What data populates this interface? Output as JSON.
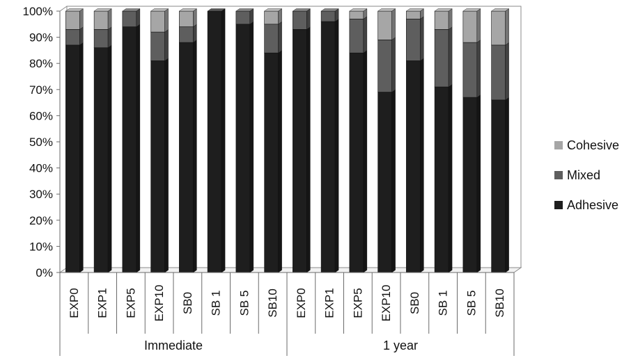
{
  "chart_data": {
    "type": "bar",
    "stacked": true,
    "percent_axis": true,
    "title": "",
    "xlabel": "",
    "ylabel": "",
    "ylim": [
      0,
      100
    ],
    "yticks": [
      "0%",
      "10%",
      "20%",
      "30%",
      "40%",
      "50%",
      "60%",
      "70%",
      "80%",
      "90%",
      "100%"
    ],
    "categories": [
      "EXP0",
      "EXP1",
      "EXP5",
      "EXP10",
      "SB0",
      "SB 1",
      "SB 5",
      "SB10",
      "EXP0",
      "EXP1",
      "EXP5",
      "EXP10",
      "SB0",
      "SB 1",
      "SB 5",
      "SB10"
    ],
    "groups": [
      {
        "label": "Immediate",
        "start": 0,
        "end": 8
      },
      {
        "label": "1 year",
        "start": 8,
        "end": 16
      }
    ],
    "series": [
      {
        "name": "Adhesive",
        "color": "#1e1e1e",
        "values": [
          87,
          86,
          94,
          81,
          88,
          100,
          95,
          84,
          93,
          96,
          84,
          69,
          81,
          71,
          67,
          66
        ]
      },
      {
        "name": "Mixed",
        "color": "#5e5e5e",
        "values": [
          6,
          7,
          6,
          11,
          6,
          0,
          5,
          11,
          7,
          4,
          13,
          20,
          16,
          22,
          21,
          21
        ]
      },
      {
        "name": "Cohesive",
        "color": "#a6a6a6",
        "values": [
          7,
          7,
          0,
          8,
          6,
          0,
          0,
          5,
          0,
          0,
          3,
          11,
          3,
          7,
          12,
          13
        ]
      }
    ],
    "grid": false,
    "legend_position": "right",
    "legend_order": [
      "Cohesive",
      "Mixed",
      "Adhesive"
    ]
  }
}
